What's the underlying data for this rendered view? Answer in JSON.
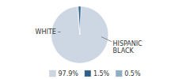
{
  "chart_data": {
    "type": "pie",
    "categories": [
      "97.9%",
      "1.5%",
      "0.5%"
    ],
    "values": [
      97.9,
      1.5,
      0.5
    ],
    "colors": [
      "#cdd6e3",
      "#2e5f8a",
      "#8fafc4"
    ],
    "annotations": [
      "WHITE",
      "HISPANIC\nBLACK"
    ],
    "legend": "bottom"
  }
}
